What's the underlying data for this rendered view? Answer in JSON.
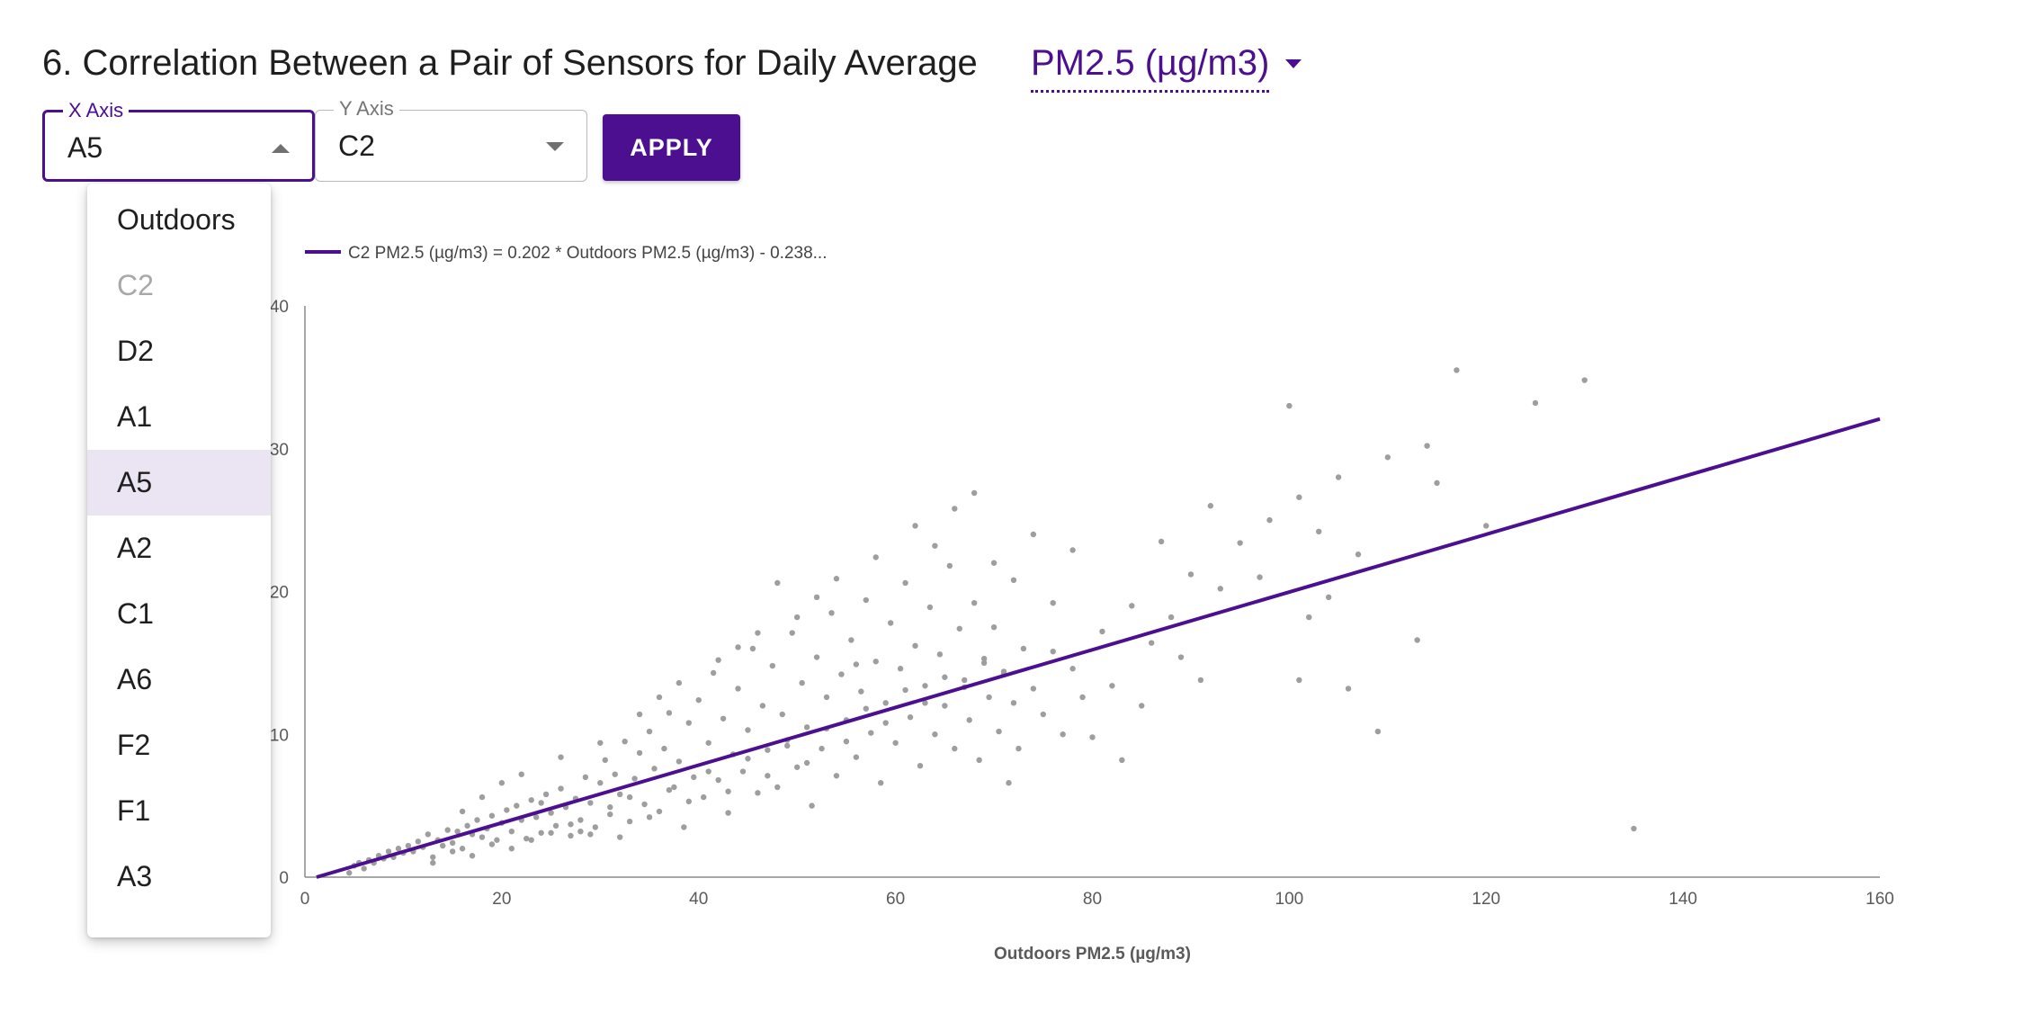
{
  "heading": {
    "text": "6. Correlation Between a Pair of Sensors for Daily Average",
    "metric": "PM2.5 (µg/m3)",
    "metric_icon": "caret-down-icon"
  },
  "x_axis_select": {
    "label": "X Axis",
    "value": "A5",
    "icon": "caret-up-icon",
    "state": "open"
  },
  "y_axis_select": {
    "label": "Y Axis",
    "value": "C2",
    "icon": "caret-down-icon"
  },
  "apply_button": {
    "label": "APPLY"
  },
  "dropdown": {
    "items": [
      {
        "label": "Outdoors",
        "state": "normal"
      },
      {
        "label": "C2",
        "state": "disabled"
      },
      {
        "label": "D2",
        "state": "normal"
      },
      {
        "label": "A1",
        "state": "normal"
      },
      {
        "label": "A5",
        "state": "selected"
      },
      {
        "label": "A2",
        "state": "normal"
      },
      {
        "label": "C1",
        "state": "normal"
      },
      {
        "label": "A6",
        "state": "normal"
      },
      {
        "label": "F2",
        "state": "normal"
      },
      {
        "label": "F1",
        "state": "normal"
      },
      {
        "label": "A3",
        "state": "normal"
      }
    ]
  },
  "colors": {
    "accent": "#4b0f8f",
    "selected_bg": "#ebe4f3",
    "points": "#9e9e9e"
  },
  "chart_data": {
    "type": "scatter",
    "legend": "C2 PM2.5 (µg/m3) = 0.202 * Outdoors PM2.5 (µg/m3) - 0.238...",
    "xlabel": "Outdoors PM2.5 (µg/m3)",
    "ylabel": "",
    "xlim": [
      0,
      160
    ],
    "ylim": [
      0,
      40
    ],
    "x_ticks": [
      "0",
      "20",
      "40",
      "60",
      "80",
      "100",
      "120",
      "140",
      "160"
    ],
    "y_ticks": [
      "40",
      "30",
      "20",
      "10",
      "0"
    ],
    "fit_line": {
      "slope": 0.202,
      "intercept": -0.238
    },
    "points": [
      [
        4.5,
        0.3
      ],
      [
        5,
        0.8
      ],
      [
        5.5,
        1.0
      ],
      [
        6,
        0.6
      ],
      [
        6.5,
        1.2
      ],
      [
        7,
        1.0
      ],
      [
        7.5,
        1.5
      ],
      [
        8,
        1.3
      ],
      [
        8.5,
        1.8
      ],
      [
        9,
        1.4
      ],
      [
        9.5,
        2.0
      ],
      [
        10,
        1.7
      ],
      [
        10.5,
        2.2
      ],
      [
        11,
        1.8
      ],
      [
        11.5,
        2.5
      ],
      [
        12,
        2.1
      ],
      [
        12.5,
        3.0
      ],
      [
        13,
        1.4
      ],
      [
        13.5,
        2.6
      ],
      [
        14,
        2.2
      ],
      [
        14.5,
        3.3
      ],
      [
        15,
        2.4
      ],
      [
        15.5,
        3.2
      ],
      [
        16,
        2.0
      ],
      [
        16.5,
        3.6
      ],
      [
        17,
        3.0
      ],
      [
        17.5,
        4.0
      ],
      [
        18,
        2.8
      ],
      [
        18.5,
        3.4
      ],
      [
        19,
        4.3
      ],
      [
        19.5,
        2.6
      ],
      [
        20,
        3.8
      ],
      [
        20.5,
        4.7
      ],
      [
        21,
        3.2
      ],
      [
        21.5,
        5.0
      ],
      [
        22,
        4.0
      ],
      [
        22.5,
        2.7
      ],
      [
        23,
        5.4
      ],
      [
        23.5,
        4.2
      ],
      [
        24,
        3.1
      ],
      [
        24.5,
        5.8
      ],
      [
        25,
        4.5
      ],
      [
        25.5,
        3.6
      ],
      [
        26,
        6.2
      ],
      [
        26.5,
        4.9
      ],
      [
        27,
        2.9
      ],
      [
        27.5,
        5.5
      ],
      [
        28,
        4.0
      ],
      [
        28.5,
        7.0
      ],
      [
        29,
        5.2
      ],
      [
        29.5,
        3.5
      ],
      [
        30,
        6.6
      ],
      [
        30.5,
        8.2
      ],
      [
        31,
        4.4
      ],
      [
        31.5,
        7.2
      ],
      [
        32,
        5.8
      ],
      [
        32.5,
        9.5
      ],
      [
        33,
        3.9
      ],
      [
        33.5,
        6.9
      ],
      [
        34,
        8.7
      ],
      [
        34.5,
        5.1
      ],
      [
        35,
        10.2
      ],
      [
        35.5,
        7.6
      ],
      [
        36,
        4.6
      ],
      [
        36.5,
        9.0
      ],
      [
        37,
        11.5
      ],
      [
        37.5,
        6.3
      ],
      [
        38,
        8.1
      ],
      [
        38.5,
        3.5
      ],
      [
        39,
        10.8
      ],
      [
        39.5,
        7.0
      ],
      [
        40,
        12.4
      ],
      [
        40.5,
        5.6
      ],
      [
        41,
        9.4
      ],
      [
        41.5,
        14.3
      ],
      [
        42,
        6.8
      ],
      [
        42.5,
        11.1
      ],
      [
        43,
        4.5
      ],
      [
        43.5,
        8.6
      ],
      [
        44,
        13.2
      ],
      [
        44.5,
        7.4
      ],
      [
        45,
        10.3
      ],
      [
        45.5,
        16.0
      ],
      [
        46,
        5.9
      ],
      [
        46.5,
        12.0
      ],
      [
        47,
        8.9
      ],
      [
        47.5,
        14.8
      ],
      [
        48,
        6.3
      ],
      [
        48.5,
        11.4
      ],
      [
        49,
        9.6
      ],
      [
        49.5,
        17.1
      ],
      [
        50,
        7.7
      ],
      [
        50.5,
        13.6
      ],
      [
        51,
        10.5
      ],
      [
        51.5,
        5.0
      ],
      [
        52,
        15.4
      ],
      [
        52.5,
        9.0
      ],
      [
        53,
        12.6
      ],
      [
        53.5,
        18.5
      ],
      [
        54,
        7.1
      ],
      [
        54.5,
        14.2
      ],
      [
        55,
        11.0
      ],
      [
        55.5,
        16.6
      ],
      [
        56,
        8.4
      ],
      [
        56.5,
        13.0
      ],
      [
        57,
        19.4
      ],
      [
        57.5,
        10.1
      ],
      [
        58,
        15.1
      ],
      [
        58.5,
        6.6
      ],
      [
        59,
        12.2
      ],
      [
        59.5,
        17.8
      ],
      [
        60,
        9.4
      ],
      [
        60.5,
        14.6
      ],
      [
        61,
        20.6
      ],
      [
        61.5,
        11.2
      ],
      [
        62,
        16.2
      ],
      [
        62.5,
        7.8
      ],
      [
        63,
        13.4
      ],
      [
        63.5,
        18.9
      ],
      [
        64,
        10.0
      ],
      [
        64.5,
        15.6
      ],
      [
        65,
        12.0
      ],
      [
        65.5,
        21.8
      ],
      [
        66,
        9.0
      ],
      [
        66.5,
        17.4
      ],
      [
        67,
        13.8
      ],
      [
        67.5,
        11.0
      ],
      [
        68,
        19.2
      ],
      [
        68.5,
        8.2
      ],
      [
        69,
        15.0
      ],
      [
        69.5,
        12.6
      ],
      [
        70,
        17.5
      ],
      [
        70.5,
        10.2
      ],
      [
        71,
        14.2
      ],
      [
        71.5,
        6.6
      ],
      [
        72,
        12.2
      ],
      [
        72.5,
        9.0
      ],
      [
        73,
        16.0
      ],
      [
        74,
        13.2
      ],
      [
        75,
        11.4
      ],
      [
        76,
        15.8
      ],
      [
        77,
        10.0
      ],
      [
        78,
        14.6
      ],
      [
        79,
        12.6
      ],
      [
        80,
        9.8
      ],
      [
        81,
        17.2
      ],
      [
        82,
        13.4
      ],
      [
        83,
        8.2
      ],
      [
        84,
        19.0
      ],
      [
        85,
        12.0
      ],
      [
        86,
        16.4
      ],
      [
        87,
        23.5
      ],
      [
        88,
        18.2
      ],
      [
        89,
        15.4
      ],
      [
        90,
        21.2
      ],
      [
        91,
        13.8
      ],
      [
        92,
        26.0
      ],
      [
        93,
        20.2
      ],
      [
        95,
        23.4
      ],
      [
        97,
        21.0
      ],
      [
        98,
        25.0
      ],
      [
        100,
        33.0
      ],
      [
        101,
        26.6
      ],
      [
        102,
        18.2
      ],
      [
        103,
        24.2
      ],
      [
        105,
        28.0
      ],
      [
        106,
        13.2
      ],
      [
        107,
        22.6
      ],
      [
        109,
        10.2
      ],
      [
        110,
        29.4
      ],
      [
        113,
        16.6
      ],
      [
        114,
        30.2
      ],
      [
        115,
        27.6
      ],
      [
        117,
        35.5
      ],
      [
        120,
        24.6
      ],
      [
        125,
        33.2
      ],
      [
        130,
        34.8
      ],
      [
        135,
        3.4
      ],
      [
        104,
        19.6
      ],
      [
        101,
        13.8
      ],
      [
        13,
        1.0
      ],
      [
        15,
        1.8
      ],
      [
        17,
        1.5
      ],
      [
        19,
        2.3
      ],
      [
        21,
        2.0
      ],
      [
        23,
        2.6
      ],
      [
        25,
        3.1
      ],
      [
        27,
        3.7
      ],
      [
        29,
        3.0
      ],
      [
        31,
        4.9
      ],
      [
        33,
        5.6
      ],
      [
        35,
        4.2
      ],
      [
        37,
        6.1
      ],
      [
        39,
        5.3
      ],
      [
        41,
        7.4
      ],
      [
        43,
        6.0
      ],
      [
        45,
        8.3
      ],
      [
        47,
        7.1
      ],
      [
        49,
        9.2
      ],
      [
        51,
        8.0
      ],
      [
        53,
        10.4
      ],
      [
        55,
        9.5
      ],
      [
        57,
        11.8
      ],
      [
        59,
        10.8
      ],
      [
        61,
        13.1
      ],
      [
        63,
        12.2
      ],
      [
        65,
        14.0
      ],
      [
        67,
        13.3
      ],
      [
        69,
        15.3
      ],
      [
        71,
        14.4
      ],
      [
        16,
        4.6
      ],
      [
        18,
        5.6
      ],
      [
        20,
        6.6
      ],
      [
        22,
        7.2
      ],
      [
        24,
        5.2
      ],
      [
        26,
        8.4
      ],
      [
        28,
        3.2
      ],
      [
        30,
        9.4
      ],
      [
        32,
        2.8
      ],
      [
        34,
        11.4
      ],
      [
        36,
        12.6
      ],
      [
        38,
        13.6
      ],
      [
        42,
        15.2
      ],
      [
        44,
        16.1
      ],
      [
        46,
        17.1
      ],
      [
        48,
        20.6
      ],
      [
        50,
        18.2
      ],
      [
        52,
        19.6
      ],
      [
        54,
        20.9
      ],
      [
        56,
        14.9
      ],
      [
        58,
        22.4
      ],
      [
        62,
        24.6
      ],
      [
        64,
        23.2
      ],
      [
        66,
        25.8
      ],
      [
        68,
        26.9
      ],
      [
        70,
        22.0
      ],
      [
        72,
        20.8
      ],
      [
        74,
        24.0
      ],
      [
        76,
        19.2
      ],
      [
        78,
        22.9
      ]
    ]
  }
}
